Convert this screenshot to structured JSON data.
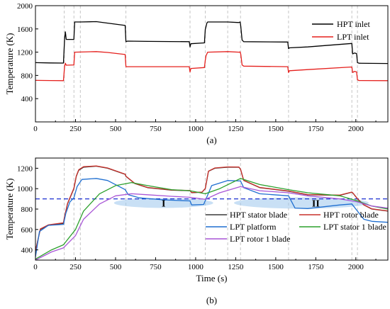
{
  "chart_data": [
    {
      "type": "line",
      "panel_label": "(a)",
      "xlabel": "",
      "ylabel": "Temperature (K)",
      "xlim": [
        0,
        2200
      ],
      "ylim": [
        0,
        2000
      ],
      "xticks": [
        0,
        250,
        500,
        750,
        1000,
        1250,
        1500,
        1750,
        2000
      ],
      "yticks": [
        400,
        800,
        1200,
        1600,
        2000
      ],
      "legend_position": "top-right",
      "grid": false,
      "vlines": [
        180,
        240,
        280,
        565,
        965,
        1060,
        1200,
        1280,
        1580,
        1975,
        2010
      ],
      "series": [
        {
          "name": "HPT inlet",
          "color": "#000000",
          "points": [
            [
              0,
              1020
            ],
            [
              90,
              1015
            ],
            [
              175,
              1012
            ],
            [
              182,
              1430
            ],
            [
              187,
              1550
            ],
            [
              192,
              1420
            ],
            [
              240,
              1420
            ],
            [
              245,
              1720
            ],
            [
              280,
              1720
            ],
            [
              380,
              1725
            ],
            [
              450,
              1700
            ],
            [
              560,
              1660
            ],
            [
              565,
              1380
            ],
            [
              575,
              1390
            ],
            [
              700,
              1385
            ],
            [
              960,
              1380
            ],
            [
              965,
              1290
            ],
            [
              970,
              1345
            ],
            [
              1055,
              1360
            ],
            [
              1060,
              1590
            ],
            [
              1065,
              1640
            ],
            [
              1070,
              1700
            ],
            [
              1075,
              1720
            ],
            [
              1200,
              1720
            ],
            [
              1270,
              1710
            ],
            [
              1278,
              1720
            ],
            [
              1282,
              1640
            ],
            [
              1290,
              1410
            ],
            [
              1300,
              1380
            ],
            [
              1575,
              1375
            ],
            [
              1580,
              1260
            ],
            [
              1585,
              1275
            ],
            [
              1700,
              1290
            ],
            [
              1975,
              1350
            ],
            [
              1980,
              1170
            ],
            [
              1992,
              1185
            ],
            [
              2005,
              1175
            ],
            [
              2010,
              1020
            ],
            [
              2020,
              1010
            ],
            [
              2200,
              1005
            ]
          ]
        },
        {
          "name": "LPT inlet",
          "color": "#e5201d",
          "points": [
            [
              0,
              715
            ],
            [
              90,
              712
            ],
            [
              175,
              710
            ],
            [
              182,
              960
            ],
            [
              187,
              1010
            ],
            [
              192,
              975
            ],
            [
              240,
              980
            ],
            [
              245,
              1200
            ],
            [
              380,
              1210
            ],
            [
              450,
              1195
            ],
            [
              560,
              1160
            ],
            [
              565,
              950
            ],
            [
              700,
              950
            ],
            [
              960,
              950
            ],
            [
              965,
              860
            ],
            [
              970,
              920
            ],
            [
              1055,
              935
            ],
            [
              1060,
              1060
            ],
            [
              1065,
              1140
            ],
            [
              1075,
              1200
            ],
            [
              1200,
              1210
            ],
            [
              1270,
              1200
            ],
            [
              1278,
              1205
            ],
            [
              1282,
              1160
            ],
            [
              1290,
              980
            ],
            [
              1300,
              960
            ],
            [
              1575,
              950
            ],
            [
              1580,
              850
            ],
            [
              1585,
              880
            ],
            [
              1700,
              900
            ],
            [
              1975,
              945
            ],
            [
              1980,
              850
            ],
            [
              1992,
              870
            ],
            [
              2005,
              860
            ],
            [
              2010,
              725
            ],
            [
              2020,
              712
            ],
            [
              2200,
              710
            ]
          ]
        }
      ]
    },
    {
      "type": "line",
      "panel_label": "(b)",
      "xlabel": "Time (s)",
      "ylabel": "Temperature (K)",
      "xlim": [
        0,
        2200
      ],
      "ylim": [
        300,
        1300
      ],
      "xticks": [
        0,
        250,
        500,
        750,
        1000,
        1250,
        1500,
        1750,
        2000
      ],
      "yticks": [
        400,
        600,
        800,
        1000,
        1200
      ],
      "legend_position": "bottom-right",
      "grid": false,
      "threshold": 900,
      "threshold_color": "#1a2fd0",
      "vlines": [
        180,
        240,
        280,
        565,
        965,
        1060,
        1200,
        1280,
        1580,
        1975,
        2010
      ],
      "annotations": [
        {
          "text": "I",
          "x": 800,
          "y": 860
        },
        {
          "text": "II",
          "x": 1750,
          "y": 860
        }
      ],
      "series": [
        {
          "name": "HPT stator blade",
          "color": "#3a3a3a",
          "points": [
            [
              0,
              390
            ],
            [
              30,
              600
            ],
            [
              80,
              640
            ],
            [
              175,
              660
            ],
            [
              180,
              710
            ],
            [
              200,
              850
            ],
            [
              240,
              1000
            ],
            [
              255,
              1120
            ],
            [
              270,
              1180
            ],
            [
              300,
              1210
            ],
            [
              380,
              1220
            ],
            [
              450,
              1200
            ],
            [
              560,
              1140
            ],
            [
              565,
              1120
            ],
            [
              620,
              1050
            ],
            [
              700,
              1010
            ],
            [
              850,
              985
            ],
            [
              965,
              980
            ],
            [
              975,
              960
            ],
            [
              1040,
              965
            ],
            [
              1060,
              1000
            ],
            [
              1080,
              1170
            ],
            [
              1120,
              1200
            ],
            [
              1200,
              1210
            ],
            [
              1270,
              1210
            ],
            [
              1280,
              1190
            ],
            [
              1300,
              1080
            ],
            [
              1400,
              1010
            ],
            [
              1580,
              975
            ],
            [
              1700,
              940
            ],
            [
              1900,
              935
            ],
            [
              1975,
              965
            ],
            [
              1985,
              950
            ],
            [
              2010,
              900
            ],
            [
              2050,
              840
            ],
            [
              2100,
              800
            ],
            [
              2200,
              780
            ]
          ]
        },
        {
          "name": "HPT rotor blade",
          "color": "#c8302a",
          "points": [
            [
              0,
              385
            ],
            [
              30,
              605
            ],
            [
              80,
              645
            ],
            [
              175,
              665
            ],
            [
              180,
              715
            ],
            [
              200,
              855
            ],
            [
              240,
              1005
            ],
            [
              255,
              1125
            ],
            [
              270,
              1185
            ],
            [
              300,
              1215
            ],
            [
              380,
              1222
            ],
            [
              450,
              1203
            ],
            [
              560,
              1142
            ],
            [
              565,
              1122
            ],
            [
              620,
              1052
            ],
            [
              700,
              1012
            ],
            [
              850,
              987
            ],
            [
              965,
              982
            ],
            [
              975,
              962
            ],
            [
              1040,
              967
            ],
            [
              1060,
              1002
            ],
            [
              1080,
              1172
            ],
            [
              1120,
              1203
            ],
            [
              1200,
              1213
            ],
            [
              1270,
              1212
            ],
            [
              1280,
              1192
            ],
            [
              1300,
              1082
            ],
            [
              1400,
              1012
            ],
            [
              1580,
              977
            ],
            [
              1700,
              942
            ],
            [
              1900,
              937
            ],
            [
              1975,
              967
            ],
            [
              1985,
              952
            ],
            [
              2010,
              902
            ],
            [
              2050,
              842
            ],
            [
              2100,
              802
            ],
            [
              2200,
              782
            ]
          ]
        },
        {
          "name": "LPT platform",
          "color": "#1f6fd1",
          "points": [
            [
              0,
              330
            ],
            [
              25,
              580
            ],
            [
              80,
              640
            ],
            [
              175,
              650
            ],
            [
              190,
              760
            ],
            [
              215,
              870
            ],
            [
              240,
              910
            ],
            [
              260,
              1020
            ],
            [
              290,
              1090
            ],
            [
              380,
              1100
            ],
            [
              450,
              1080
            ],
            [
              560,
              990
            ],
            [
              580,
              940
            ],
            [
              650,
              910
            ],
            [
              800,
              890
            ],
            [
              965,
              880
            ],
            [
              975,
              840
            ],
            [
              1050,
              845
            ],
            [
              1065,
              900
            ],
            [
              1100,
              1030
            ],
            [
              1200,
              1080
            ],
            [
              1280,
              1075
            ],
            [
              1300,
              1010
            ],
            [
              1400,
              950
            ],
            [
              1580,
              930
            ],
            [
              1620,
              810
            ],
            [
              1700,
              805
            ],
            [
              1900,
              840
            ],
            [
              1975,
              850
            ],
            [
              2010,
              780
            ],
            [
              2050,
              700
            ],
            [
              2100,
              680
            ],
            [
              2200,
              670
            ]
          ]
        },
        {
          "name": "LPT stator 1 blade",
          "color": "#2ca02c",
          "points": [
            [
              0,
              310
            ],
            [
              100,
              400
            ],
            [
              175,
              450
            ],
            [
              250,
              600
            ],
            [
              300,
              780
            ],
            [
              400,
              950
            ],
            [
              500,
              1030
            ],
            [
              600,
              1060
            ],
            [
              700,
              1030
            ],
            [
              850,
              990
            ],
            [
              965,
              980
            ],
            [
              1060,
              950
            ],
            [
              1150,
              1000
            ],
            [
              1280,
              1100
            ],
            [
              1400,
              1040
            ],
            [
              1580,
              990
            ],
            [
              1700,
              960
            ],
            [
              1900,
              930
            ],
            [
              2010,
              880
            ],
            [
              2100,
              830
            ],
            [
              2200,
              800
            ]
          ]
        },
        {
          "name": "LPT rotor 1 blade",
          "color": "#a855d6",
          "points": [
            [
              0,
              300
            ],
            [
              100,
              380
            ],
            [
              175,
              420
            ],
            [
              250,
              540
            ],
            [
              300,
              700
            ],
            [
              400,
              850
            ],
            [
              500,
              930
            ],
            [
              600,
              950
            ],
            [
              700,
              940
            ],
            [
              850,
              925
            ],
            [
              965,
              915
            ],
            [
              1060,
              895
            ],
            [
              1150,
              960
            ],
            [
              1280,
              1020
            ],
            [
              1400,
              980
            ],
            [
              1580,
              960
            ],
            [
              1700,
              930
            ],
            [
              1900,
              900
            ],
            [
              2010,
              870
            ],
            [
              2100,
              830
            ],
            [
              2200,
              810
            ]
          ]
        }
      ]
    }
  ]
}
